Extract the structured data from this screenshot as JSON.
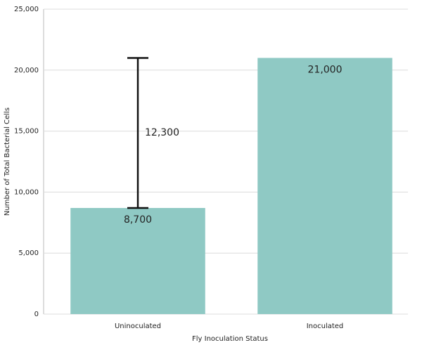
{
  "chart_data": {
    "type": "bar",
    "x_label": "Fly Inoculation Status",
    "y_label": "Number of Total Bacterial Cells",
    "categories": [
      "Uninoculated",
      "Inoculated"
    ],
    "values": [
      8700,
      21000
    ],
    "value_labels": [
      "8,700",
      "21,000"
    ],
    "errors": [
      12300,
      null
    ],
    "error_labels": [
      "12,300",
      null
    ],
    "color": "#8fc9c4",
    "ylim": [
      0,
      25000
    ],
    "yticks": [
      0,
      {
        "value": 5000,
        "label": "5,000"
      },
      {
        "value": 10000,
        "label": "10,000"
      },
      {
        "value": 15000,
        "label": "15,000"
      },
      {
        "value": 20000,
        "label": "20,000"
      },
      {
        "value": 25000,
        "label": "25,000"
      }
    ],
    "grid": true
  }
}
